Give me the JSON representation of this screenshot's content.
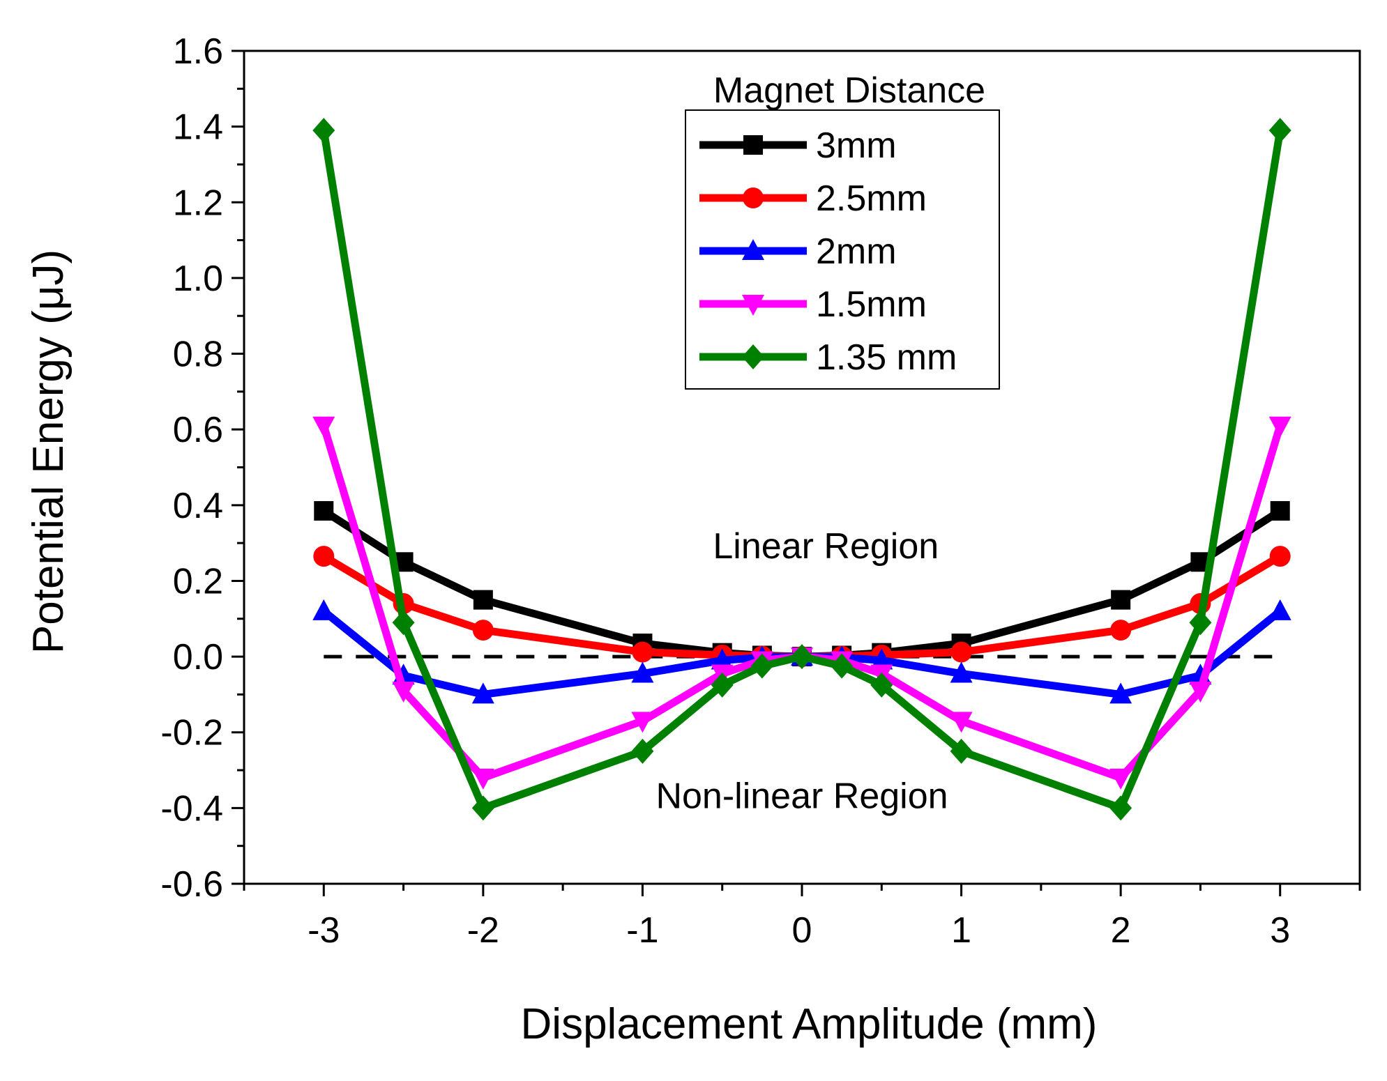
{
  "chart_data": {
    "type": "line",
    "title": "",
    "xlabel": "Displacement Amplitude (mm)",
    "ylabel": "Potential Energy (μJ)",
    "xlim": [
      -3.5,
      3.5
    ],
    "ylim": [
      -0.6,
      1.6
    ],
    "xticks": [
      -3,
      -2,
      -1,
      0,
      1,
      2,
      3
    ],
    "xtick_labels": [
      "-3",
      "-2",
      "-1",
      "0",
      "1",
      "2",
      "3"
    ],
    "yticks": [
      -0.6,
      -0.4,
      -0.2,
      0.0,
      0.2,
      0.4,
      0.6,
      0.8,
      1.0,
      1.2,
      1.4,
      1.6
    ],
    "ytick_labels": [
      "-0.6",
      "-0.4",
      "-0.2",
      "0.0",
      "0.2",
      "0.4",
      "0.6",
      "0.8",
      "1.0",
      "1.2",
      "1.4",
      "1.6"
    ],
    "x": [
      -3,
      -2.5,
      -2,
      -1,
      -0.5,
      -0.25,
      0,
      0.25,
      0.5,
      1,
      2,
      2.5,
      3
    ],
    "legend_title": "Magnet Distance",
    "legend_position": "top-center",
    "series": [
      {
        "name": "3mm",
        "color": "#000000",
        "marker": "square",
        "values": [
          0.385,
          0.25,
          0.15,
          0.035,
          0.01,
          0.003,
          0.0,
          0.003,
          0.01,
          0.035,
          0.15,
          0.25,
          0.385
        ]
      },
      {
        "name": "2.5mm",
        "color": "#ff0000",
        "marker": "circle",
        "values": [
          0.265,
          0.14,
          0.07,
          0.012,
          0.004,
          0.001,
          0.0,
          0.001,
          0.004,
          0.012,
          0.07,
          0.14,
          0.265
        ]
      },
      {
        "name": "2mm",
        "color": "#0000ff",
        "marker": "triangle-up",
        "values": [
          0.12,
          -0.05,
          -0.1,
          -0.045,
          -0.01,
          -0.002,
          0.0,
          -0.002,
          -0.01,
          -0.045,
          -0.1,
          -0.05,
          0.12
        ]
      },
      {
        "name": "1.5mm",
        "color": "#ff00ff",
        "marker": "triangle-down",
        "values": [
          0.61,
          -0.09,
          -0.32,
          -0.17,
          -0.045,
          -0.01,
          0.0,
          -0.01,
          -0.045,
          -0.17,
          -0.32,
          -0.09,
          0.61
        ]
      },
      {
        "name": "1.35 mm",
        "color": "#008000",
        "marker": "diamond",
        "values": [
          1.39,
          0.09,
          -0.4,
          -0.25,
          -0.075,
          -0.025,
          0.0,
          -0.025,
          -0.075,
          -0.25,
          -0.4,
          0.09,
          1.39
        ]
      }
    ],
    "reference_line": {
      "y": 0.0,
      "x_range": [
        -3,
        3
      ],
      "style": "dashed",
      "color": "#000000"
    },
    "annotations": [
      {
        "text": "Linear Region",
        "x": 0.15,
        "y": 0.26
      },
      {
        "text": "Non-linear Region",
        "x": 0.0,
        "y": -0.4
      }
    ]
  }
}
